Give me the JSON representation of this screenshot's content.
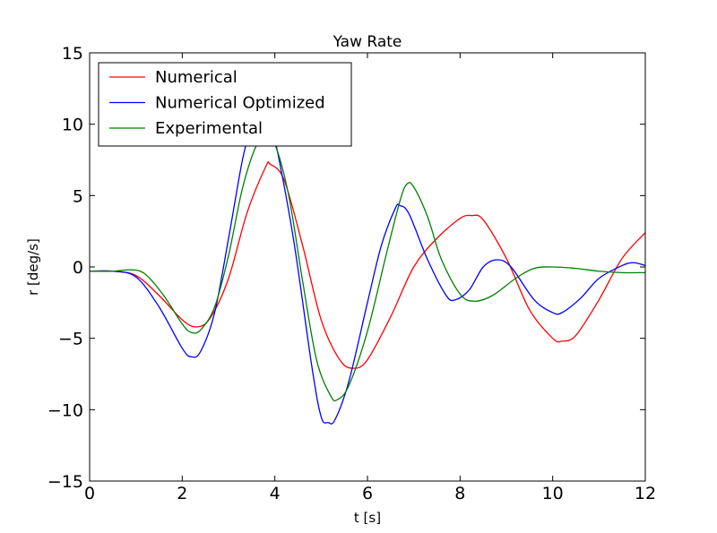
{
  "chart_data": {
    "type": "line",
    "title": "Yaw Rate",
    "xlabel": "t [s]",
    "ylabel": "r [deg/s]",
    "xlim": [
      0,
      12
    ],
    "ylim": [
      -15,
      15
    ],
    "xticks": [
      0,
      2,
      4,
      6,
      8,
      10,
      12
    ],
    "yticks": [
      -15,
      -10,
      -5,
      0,
      5,
      10,
      15
    ],
    "xtick_labels": [
      "0",
      "2",
      "4",
      "6",
      "8",
      "10",
      "12"
    ],
    "ytick_labels": [
      "−15",
      "−10",
      "−5",
      "0",
      "5",
      "10",
      "15"
    ],
    "grid": false,
    "legend_position": "top-left",
    "series": [
      {
        "name": "Numerical",
        "color": "#ff0000",
        "points": [
          [
            0,
            -0.3
          ],
          [
            0.5,
            -0.3
          ],
          [
            1.0,
            -0.6
          ],
          [
            1.5,
            -2.0
          ],
          [
            2.0,
            -3.7
          ],
          [
            2.3,
            -4.2
          ],
          [
            2.6,
            -3.6
          ],
          [
            3.0,
            -0.8
          ],
          [
            3.4,
            3.8
          ],
          [
            3.8,
            7.0
          ],
          [
            3.9,
            7.2
          ],
          [
            4.2,
            6.1
          ],
          [
            4.6,
            1.5
          ],
          [
            5.0,
            -3.7
          ],
          [
            5.4,
            -6.5
          ],
          [
            5.7,
            -7.1
          ],
          [
            6.0,
            -6.5
          ],
          [
            6.5,
            -3.5
          ],
          [
            7.0,
            0.0
          ],
          [
            7.5,
            2.0
          ],
          [
            8.0,
            3.4
          ],
          [
            8.25,
            3.6
          ],
          [
            8.5,
            3.3
          ],
          [
            9.0,
            0.6
          ],
          [
            9.5,
            -3.0
          ],
          [
            10.0,
            -5.0
          ],
          [
            10.2,
            -5.2
          ],
          [
            10.5,
            -4.8
          ],
          [
            11.0,
            -2.3
          ],
          [
            11.5,
            0.6
          ],
          [
            12.0,
            2.4
          ]
        ]
      },
      {
        "name": "Numerical Optimized",
        "color": "#0000ff",
        "points": [
          [
            0,
            -0.3
          ],
          [
            0.5,
            -0.3
          ],
          [
            1.0,
            -0.7
          ],
          [
            1.5,
            -2.8
          ],
          [
            2.0,
            -5.7
          ],
          [
            2.2,
            -6.3
          ],
          [
            2.4,
            -5.9
          ],
          [
            2.7,
            -3.2
          ],
          [
            3.0,
            2.0
          ],
          [
            3.3,
            7.5
          ],
          [
            3.5,
            10.0
          ],
          [
            3.6,
            11.0
          ],
          [
            3.7,
            11.5
          ],
          [
            3.8,
            11.5
          ],
          [
            4.0,
            9.0
          ],
          [
            4.4,
            2.0
          ],
          [
            4.8,
            -7.0
          ],
          [
            5.0,
            -10.5
          ],
          [
            5.15,
            -10.9
          ],
          [
            5.3,
            -10.7
          ],
          [
            5.6,
            -8.0
          ],
          [
            6.0,
            -2.5
          ],
          [
            6.3,
            1.5
          ],
          [
            6.6,
            4.1
          ],
          [
            6.7,
            4.3
          ],
          [
            6.9,
            3.7
          ],
          [
            7.3,
            0.5
          ],
          [
            7.7,
            -2.0
          ],
          [
            7.9,
            -2.3
          ],
          [
            8.2,
            -1.6
          ],
          [
            8.5,
            0.0
          ],
          [
            8.8,
            0.5
          ],
          [
            9.1,
            0.0
          ],
          [
            9.6,
            -2.3
          ],
          [
            10.0,
            -3.2
          ],
          [
            10.2,
            -3.2
          ],
          [
            10.6,
            -2.2
          ],
          [
            11.0,
            -0.8
          ],
          [
            11.5,
            0.1
          ],
          [
            11.75,
            0.3
          ],
          [
            12.0,
            0.1
          ]
        ]
      },
      {
        "name": "Experimental",
        "color": "#008000",
        "points": [
          [
            0,
            -0.3
          ],
          [
            0.5,
            -0.3
          ],
          [
            0.9,
            -0.2
          ],
          [
            1.2,
            -0.5
          ],
          [
            1.6,
            -2.0
          ],
          [
            2.0,
            -4.0
          ],
          [
            2.2,
            -4.6
          ],
          [
            2.4,
            -4.4
          ],
          [
            2.7,
            -2.8
          ],
          [
            3.0,
            0.8
          ],
          [
            3.3,
            5.5
          ],
          [
            3.6,
            8.5
          ],
          [
            3.8,
            9.0
          ],
          [
            4.0,
            8.6
          ],
          [
            4.3,
            5.0
          ],
          [
            4.6,
            -1.0
          ],
          [
            4.9,
            -6.5
          ],
          [
            5.2,
            -9.0
          ],
          [
            5.35,
            -9.3
          ],
          [
            5.6,
            -8.3
          ],
          [
            6.0,
            -4.5
          ],
          [
            6.4,
            0.8
          ],
          [
            6.7,
            4.6
          ],
          [
            6.85,
            5.8
          ],
          [
            7.0,
            5.6
          ],
          [
            7.3,
            3.5
          ],
          [
            7.6,
            0.5
          ],
          [
            8.0,
            -1.9
          ],
          [
            8.3,
            -2.4
          ],
          [
            8.7,
            -2.0
          ],
          [
            9.2,
            -0.8
          ],
          [
            9.6,
            -0.1
          ],
          [
            10.0,
            0.0
          ],
          [
            10.5,
            -0.1
          ],
          [
            11.0,
            -0.3
          ],
          [
            11.5,
            -0.4
          ],
          [
            12.0,
            -0.4
          ]
        ]
      }
    ]
  }
}
